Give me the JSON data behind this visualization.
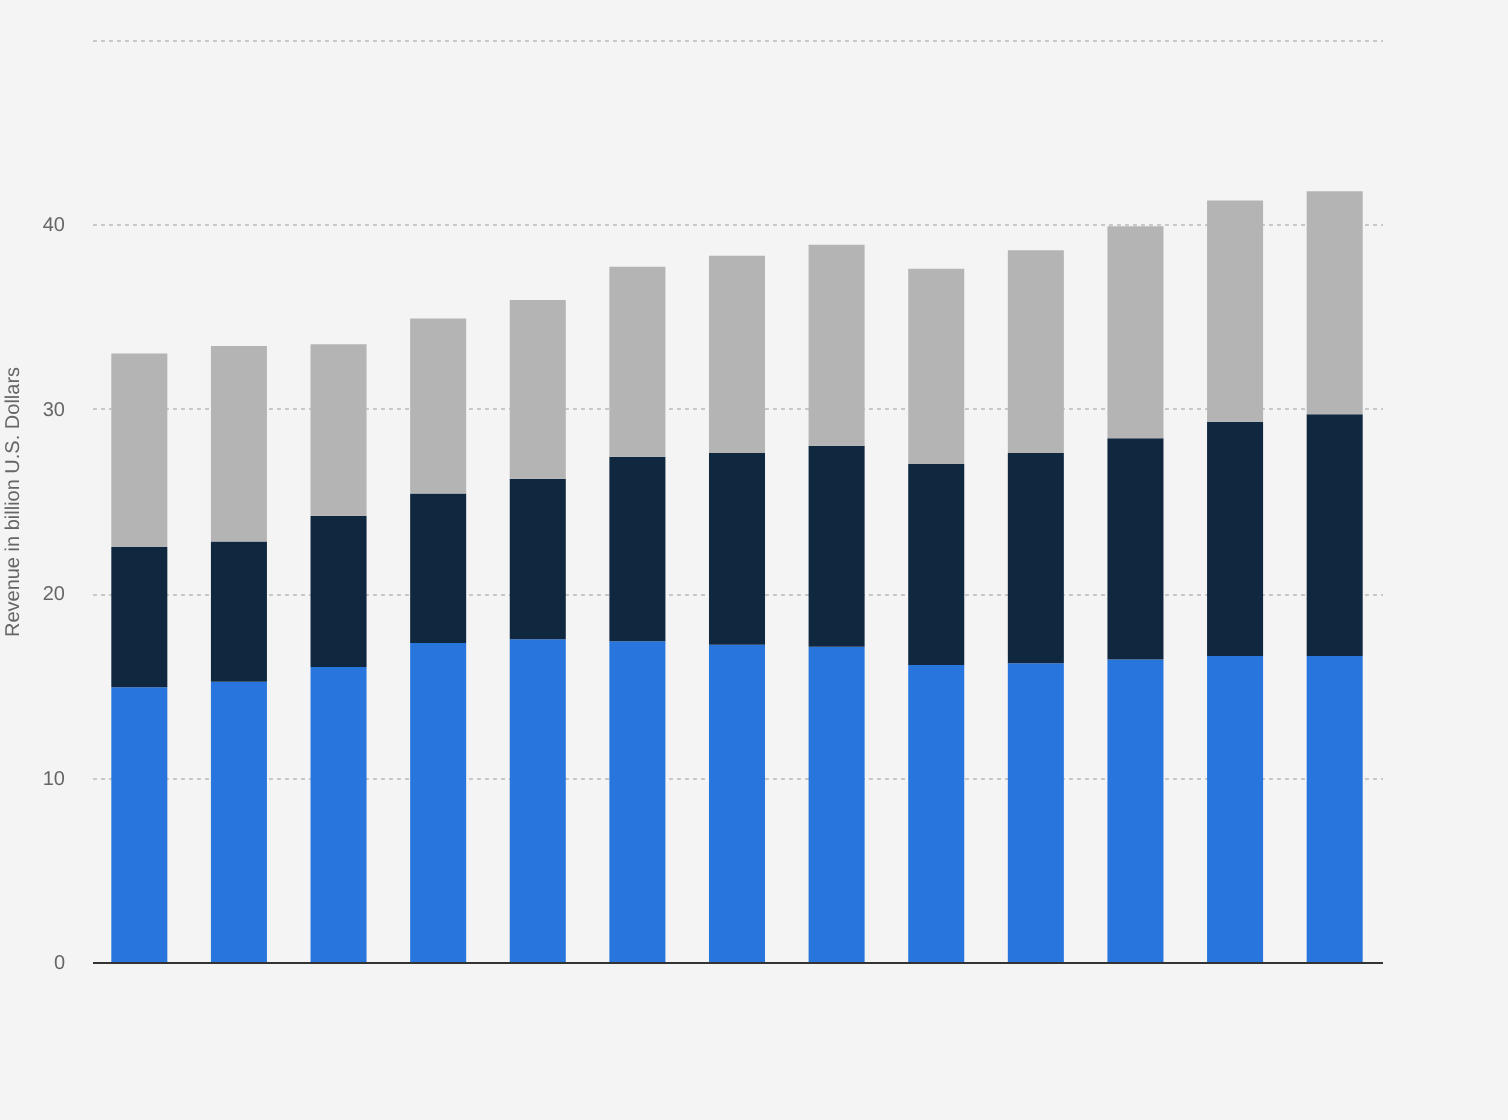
{
  "chart_data": {
    "type": "bar",
    "stacked": true,
    "ylabel": "Revenue in billion U.S. Dollars",
    "categories": [
      null,
      null,
      null,
      null,
      null,
      null,
      null,
      null,
      null,
      null,
      null,
      null,
      null
    ],
    "series": [
      {
        "color": "#2876dd",
        "values": [
          14.9,
          15.2,
          16.0,
          17.3,
          17.5,
          17.4,
          17.2,
          17.1,
          16.1,
          16.2,
          16.4,
          16.6,
          16.6
        ]
      },
      {
        "color": "#0f2840",
        "values": [
          7.6,
          7.6,
          8.2,
          8.1,
          8.7,
          10.0,
          10.4,
          10.9,
          10.9,
          11.4,
          12.0,
          12.7,
          13.1
        ]
      },
      {
        "color": "#b4b4b4",
        "values": [
          10.5,
          10.6,
          9.3,
          9.5,
          9.7,
          10.3,
          10.7,
          10.9,
          10.6,
          11.0,
          11.5,
          12.0,
          12.1
        ]
      }
    ],
    "ylim": [
      0,
      50
    ],
    "yticks": [
      0,
      10,
      20,
      30,
      40,
      {
        "value": 50,
        "label": null
      }
    ],
    "grid": "y",
    "tick_labels": "y"
  }
}
